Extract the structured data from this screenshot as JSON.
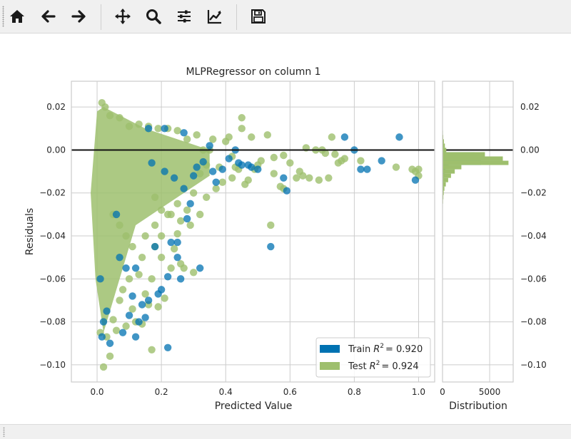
{
  "toolbar": {
    "buttons": [
      {
        "name": "home-button",
        "icon": "home-icon",
        "tooltip": "Reset original view"
      },
      {
        "name": "back-button",
        "icon": "arrow-left-icon",
        "tooltip": "Back"
      },
      {
        "name": "forward-button",
        "icon": "arrow-right-icon",
        "tooltip": "Forward"
      },
      {
        "name": "pan-button",
        "icon": "move-icon",
        "tooltip": "Pan"
      },
      {
        "name": "zoom-button",
        "icon": "magnifier-icon",
        "tooltip": "Zoom"
      },
      {
        "name": "configure-subplots-button",
        "icon": "sliders-icon",
        "tooltip": "Configure subplots"
      },
      {
        "name": "edit-axes-button",
        "icon": "line-chart-icon",
        "tooltip": "Edit axis"
      },
      {
        "name": "save-button",
        "icon": "floppy-disk-icon",
        "tooltip": "Save the figure"
      }
    ]
  },
  "chart_data": {
    "type": "scatter",
    "title": "MLPRegressor on column 1",
    "xlabel": "Predicted Value",
    "ylabel": "Residuals",
    "xlim": [
      -0.08,
      1.05
    ],
    "ylim": [
      -0.108,
      0.032
    ],
    "xticks": [
      {
        "value": 0.0,
        "label": "0.0"
      },
      {
        "value": 0.2,
        "label": "0.2"
      },
      {
        "value": 0.4,
        "label": "0.4"
      },
      {
        "value": 0.6,
        "label": "0.6"
      },
      {
        "value": 0.8,
        "label": "0.8"
      },
      {
        "value": 1.0,
        "label": "1.0"
      }
    ],
    "yticks": [
      {
        "value": 0.02,
        "label": "0.02"
      },
      {
        "value": 0.0,
        "label": "0.00"
      },
      {
        "value": -0.02,
        "label": "−0.02"
      },
      {
        "value": -0.04,
        "label": "−0.04"
      },
      {
        "value": -0.06,
        "label": "−0.06"
      },
      {
        "value": -0.08,
        "label": "−0.08"
      },
      {
        "value": -0.1,
        "label": "−0.10"
      }
    ],
    "grid": true,
    "hline": 0,
    "legend_position": "lower right",
    "series": [
      {
        "name": "Train",
        "legend_label": "Train",
        "r2_text": "R",
        "r2_value": "= 0.920",
        "color": "#0072b2",
        "points": [
          [
            0.94,
            0.006
          ],
          [
            0.99,
            -0.014
          ],
          [
            0.885,
            -0.005
          ],
          [
            0.84,
            -0.009
          ],
          [
            0.82,
            -0.009
          ],
          [
            0.8,
            0.0
          ],
          [
            0.77,
            0.006
          ],
          [
            0.59,
            -0.019
          ],
          [
            0.58,
            -0.013
          ],
          [
            0.54,
            -0.045
          ],
          [
            0.5,
            -0.009
          ],
          [
            0.48,
            -0.008
          ],
          [
            0.47,
            -0.007
          ],
          [
            0.44,
            -0.006
          ],
          [
            0.41,
            -0.004
          ],
          [
            0.39,
            -0.009
          ],
          [
            0.37,
            -0.015
          ],
          [
            0.35,
            0.002
          ],
          [
            0.33,
            -0.0055
          ],
          [
            0.31,
            -0.008
          ],
          [
            0.29,
            -0.025
          ],
          [
            0.28,
            -0.032
          ],
          [
            0.27,
            -0.018
          ],
          [
            0.25,
            -0.05
          ],
          [
            0.24,
            -0.013
          ],
          [
            0.23,
            -0.043
          ],
          [
            0.22,
            -0.059
          ],
          [
            0.21,
            -0.01
          ],
          [
            0.2,
            -0.065
          ],
          [
            0.19,
            -0.067
          ],
          [
            0.16,
            -0.07
          ],
          [
            0.15,
            -0.078
          ],
          [
            0.14,
            -0.072
          ],
          [
            0.13,
            -0.08
          ],
          [
            0.12,
            -0.087
          ],
          [
            0.11,
            -0.068
          ],
          [
            0.1,
            -0.077
          ],
          [
            0.09,
            -0.055
          ],
          [
            0.08,
            -0.085
          ],
          [
            0.07,
            -0.05
          ],
          [
            0.04,
            -0.09
          ],
          [
            0.03,
            -0.075
          ],
          [
            0.02,
            -0.08
          ],
          [
            0.015,
            -0.087
          ],
          [
            0.01,
            -0.06
          ],
          [
            0.06,
            -0.03
          ],
          [
            0.25,
            -0.043
          ],
          [
            0.27,
            0.008
          ],
          [
            0.21,
            0.01
          ],
          [
            0.22,
            -0.092
          ],
          [
            0.43,
            0.0
          ],
          [
            0.45,
            -0.007
          ],
          [
            0.36,
            -0.01
          ],
          [
            0.32,
            -0.055
          ],
          [
            0.3,
            -0.012
          ],
          [
            0.26,
            -0.06
          ],
          [
            0.18,
            -0.045
          ],
          [
            0.17,
            -0.006
          ],
          [
            0.16,
            0.01
          ],
          [
            0.12,
            -0.055
          ]
        ]
      },
      {
        "name": "Test",
        "legend_label": "Test",
        "r2_text": "R",
        "r2_value": "= 0.924",
        "color": "#9ebf6d",
        "points": [
          [
            1.0,
            -0.009
          ],
          [
            1.0,
            -0.012
          ],
          [
            0.99,
            -0.01
          ],
          [
            0.98,
            -0.009
          ],
          [
            0.93,
            -0.008
          ],
          [
            0.82,
            -0.005
          ],
          [
            0.77,
            -0.004
          ],
          [
            0.76,
            -0.005
          ],
          [
            0.72,
            -0.013
          ],
          [
            0.69,
            -0.014
          ],
          [
            0.66,
            -0.013
          ],
          [
            0.64,
            -0.012
          ],
          [
            0.63,
            -0.01
          ],
          [
            0.62,
            -0.013
          ],
          [
            0.6,
            -0.006
          ],
          [
            0.58,
            -0.018
          ],
          [
            0.57,
            -0.017
          ],
          [
            0.55,
            -0.011
          ],
          [
            0.54,
            -0.035
          ],
          [
            0.51,
            -0.005
          ],
          [
            0.49,
            -0.009
          ],
          [
            0.47,
            -0.014
          ],
          [
            0.46,
            -0.016
          ],
          [
            0.45,
            0.015
          ],
          [
            0.44,
            -0.009
          ],
          [
            0.43,
            -0.008
          ],
          [
            0.42,
            -0.013
          ],
          [
            0.41,
            0.006
          ],
          [
            0.39,
            -0.015
          ],
          [
            0.38,
            -0.008
          ],
          [
            0.35,
            0.0
          ],
          [
            0.34,
            -0.007
          ],
          [
            0.32,
            -0.011
          ],
          [
            0.3,
            -0.057
          ],
          [
            0.29,
            -0.035
          ],
          [
            0.27,
            -0.055
          ],
          [
            0.26,
            -0.053
          ],
          [
            0.25,
            -0.039
          ],
          [
            0.24,
            -0.046
          ],
          [
            0.23,
            -0.055
          ],
          [
            0.22,
            -0.03
          ],
          [
            0.21,
            -0.069
          ],
          [
            0.2,
            -0.05
          ],
          [
            0.19,
            -0.073
          ],
          [
            0.18,
            -0.035
          ],
          [
            0.17,
            -0.06
          ],
          [
            0.17,
            -0.093
          ],
          [
            0.16,
            -0.072
          ],
          [
            0.15,
            -0.067
          ],
          [
            0.14,
            -0.081
          ],
          [
            0.13,
            -0.058
          ],
          [
            0.12,
            -0.08
          ],
          [
            0.11,
            -0.074
          ],
          [
            0.1,
            -0.06
          ],
          [
            0.09,
            -0.082
          ],
          [
            0.08,
            -0.065
          ],
          [
            0.07,
            -0.07
          ],
          [
            0.06,
            -0.084
          ],
          [
            0.05,
            -0.079
          ],
          [
            0.04,
            -0.096
          ],
          [
            0.03,
            -0.087
          ],
          [
            0.02,
            -0.101
          ],
          [
            0.01,
            -0.085
          ],
          [
            0.015,
            0.022
          ],
          [
            0.025,
            0.02
          ],
          [
            0.04,
            0.016
          ],
          [
            0.07,
            0.015
          ],
          [
            0.1,
            0.011
          ],
          [
            0.13,
            0.012
          ],
          [
            0.16,
            0.011
          ],
          [
            0.19,
            0.01
          ],
          [
            0.22,
            0.01
          ],
          [
            0.25,
            0.009
          ],
          [
            0.28,
            0.005
          ],
          [
            0.31,
            0.007
          ],
          [
            0.33,
            0.0
          ],
          [
            0.36,
            0.005
          ],
          [
            0.48,
            0.006
          ],
          [
            0.53,
            0.007
          ],
          [
            0.58,
            -0.0025
          ],
          [
            0.65,
            0.001
          ],
          [
            0.68,
            0.0
          ],
          [
            0.7,
            0.0
          ],
          [
            0.71,
            -0.0015
          ],
          [
            0.73,
            0.006
          ],
          [
            0.74,
            -0.002
          ],
          [
            0.75,
            -0.006
          ],
          [
            0.45,
            0.01
          ],
          [
            0.55,
            -0.0035
          ],
          [
            0.5,
            -0.007
          ],
          [
            0.42,
            -0.003
          ],
          [
            0.4,
            0.004
          ],
          [
            0.37,
            -0.018
          ],
          [
            0.34,
            -0.022
          ],
          [
            0.28,
            -0.028
          ],
          [
            0.26,
            -0.033
          ],
          [
            0.23,
            -0.03
          ],
          [
            0.2,
            -0.028
          ],
          [
            0.18,
            -0.022
          ],
          [
            0.15,
            -0.04
          ],
          [
            0.3,
            -0.02
          ],
          [
            0.32,
            -0.03
          ],
          [
            0.25,
            -0.025
          ],
          [
            0.2,
            -0.04
          ],
          [
            0.18,
            -0.045
          ],
          [
            0.14,
            -0.05
          ],
          [
            0.11,
            -0.045
          ],
          [
            0.09,
            -0.04
          ],
          [
            0.07,
            -0.035
          ],
          [
            0.05,
            -0.03
          ]
        ]
      }
    ],
    "histogram": {
      "xlabel": "Distribution",
      "xticks": [
        {
          "value": 0,
          "label": "0"
        },
        {
          "value": 5000,
          "label": "5000"
        }
      ],
      "xlim": [
        0,
        7500
      ],
      "bin_width": 0.002,
      "train_bins": [
        [
          0.002,
          60
        ],
        [
          0.0,
          250
        ],
        [
          -0.002,
          3400
        ],
        [
          -0.004,
          4900
        ],
        [
          -0.006,
          4100
        ],
        [
          -0.008,
          650
        ],
        [
          -0.01,
          300
        ],
        [
          -0.012,
          180
        ],
        [
          -0.014,
          120
        ],
        [
          -0.016,
          90
        ],
        [
          -0.018,
          60
        ],
        [
          -0.02,
          45
        ],
        [
          -0.022,
          30
        ],
        [
          -0.024,
          20
        ],
        [
          -0.026,
          15
        ]
      ],
      "test_bins": [
        [
          0.008,
          50
        ],
        [
          0.006,
          80
        ],
        [
          0.004,
          150
        ],
        [
          0.002,
          250
        ],
        [
          0.0,
          400
        ],
        [
          -0.002,
          4500
        ],
        [
          -0.004,
          6400
        ],
        [
          -0.006,
          7000
        ],
        [
          -0.008,
          2000
        ],
        [
          -0.01,
          1300
        ],
        [
          -0.012,
          900
        ],
        [
          -0.014,
          600
        ],
        [
          -0.016,
          350
        ],
        [
          -0.018,
          200
        ],
        [
          -0.02,
          130
        ],
        [
          -0.022,
          90
        ],
        [
          -0.024,
          60
        ],
        [
          -0.026,
          40
        ],
        [
          -0.028,
          25
        ],
        [
          -0.03,
          15
        ],
        [
          -0.032,
          10
        ],
        [
          -0.036,
          6
        ]
      ]
    }
  }
}
